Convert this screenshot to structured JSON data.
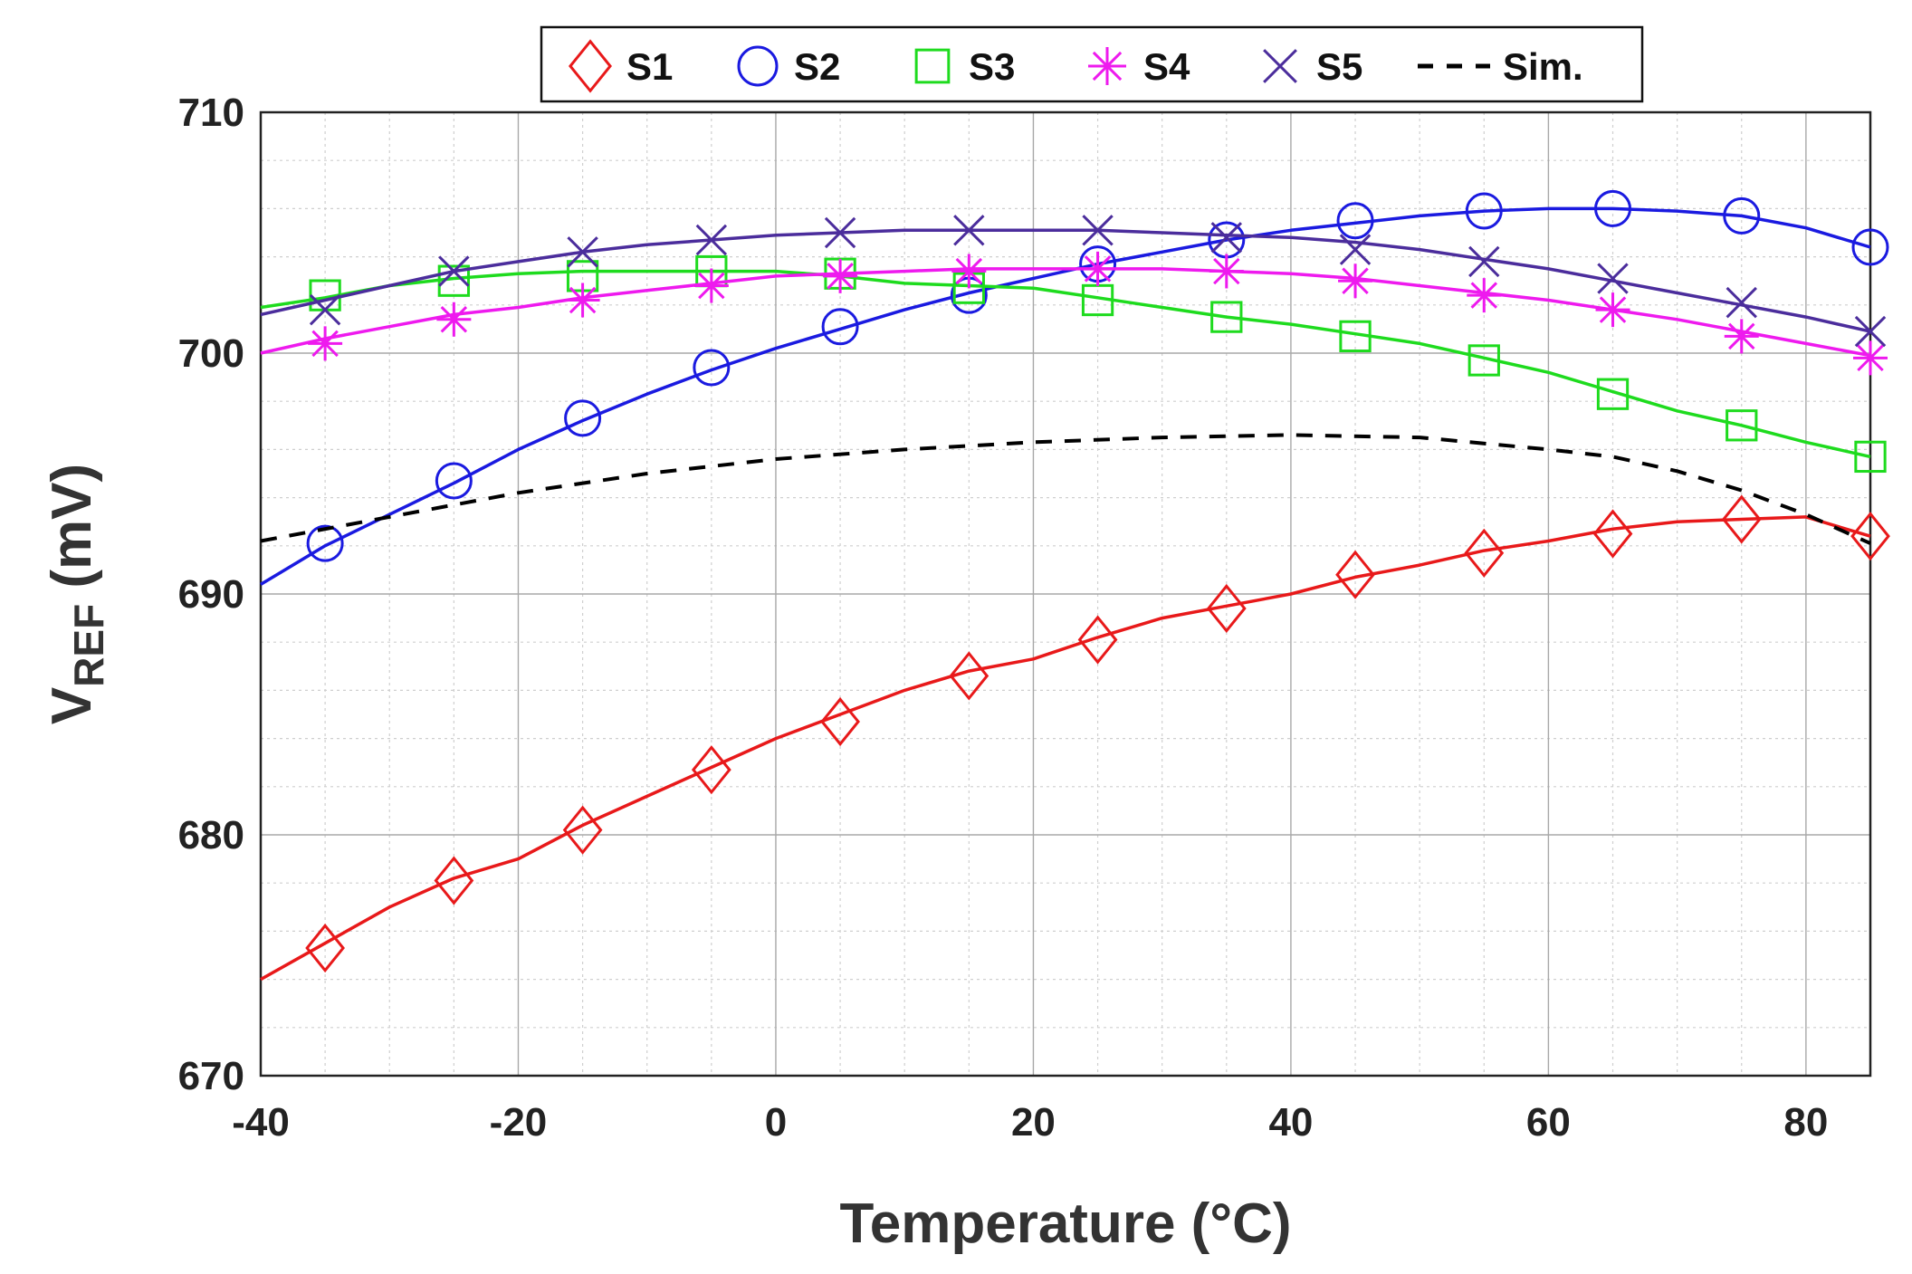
{
  "chart_data": {
    "type": "line",
    "xlabel": "Temperature (°C)",
    "ylabel_main": "V",
    "ylabel_sub": "REF",
    "ylabel_unit": " (mV)",
    "xlim": [
      -40,
      85
    ],
    "ylim": [
      670,
      710
    ],
    "xticks": [
      -40,
      -20,
      0,
      20,
      40,
      60,
      80
    ],
    "yticks": [
      670,
      680,
      690,
      700,
      710
    ],
    "grid": true,
    "legend_position": "top-center",
    "marker_x": [
      -35,
      -25,
      -15,
      -5,
      5,
      15,
      25,
      35,
      45,
      55,
      65,
      75,
      85
    ],
    "series": [
      {
        "name": "S1",
        "color": "#e8191a",
        "marker": "diamond",
        "x": [
          -40,
          -35,
          -30,
          -25,
          -20,
          -15,
          -10,
          -5,
          0,
          5,
          10,
          15,
          20,
          25,
          30,
          35,
          40,
          45,
          50,
          55,
          60,
          65,
          70,
          75,
          80,
          85
        ],
        "y": [
          674.0,
          675.5,
          677.0,
          678.2,
          679.0,
          680.4,
          681.6,
          682.8,
          684.0,
          685.0,
          686.0,
          686.8,
          687.3,
          688.2,
          689.0,
          689.5,
          690.0,
          690.7,
          691.2,
          691.8,
          692.2,
          692.7,
          693.0,
          693.1,
          693.2,
          692.4
        ],
        "markers": [
          675.3,
          678.1,
          680.2,
          682.7,
          684.7,
          686.6,
          688.1,
          689.4,
          690.8,
          691.7,
          692.5,
          693.1,
          692.4
        ]
      },
      {
        "name": "S2",
        "color": "#1a1ae0",
        "marker": "circle",
        "x": [
          -40,
          -35,
          -30,
          -25,
          -20,
          -15,
          -10,
          -5,
          0,
          5,
          10,
          15,
          20,
          25,
          30,
          35,
          40,
          45,
          50,
          55,
          60,
          65,
          70,
          75,
          80,
          85
        ],
        "y": [
          690.4,
          692.0,
          693.3,
          694.6,
          696.0,
          697.2,
          698.3,
          699.3,
          700.2,
          701.0,
          701.8,
          702.5,
          703.1,
          703.7,
          704.2,
          704.7,
          705.1,
          705.4,
          705.7,
          705.9,
          706.0,
          706.0,
          705.9,
          705.7,
          705.2,
          704.4
        ],
        "markers": [
          692.1,
          694.7,
          697.3,
          699.4,
          701.1,
          702.4,
          703.7,
          704.7,
          705.5,
          705.9,
          706.0,
          705.7,
          704.4
        ]
      },
      {
        "name": "S3",
        "color": "#1edb1e",
        "marker": "square",
        "x": [
          -40,
          -35,
          -30,
          -25,
          -20,
          -15,
          -10,
          -5,
          0,
          5,
          10,
          15,
          20,
          25,
          30,
          35,
          40,
          45,
          50,
          55,
          60,
          65,
          70,
          75,
          80,
          85
        ],
        "y": [
          701.9,
          702.3,
          702.8,
          703.1,
          703.3,
          703.4,
          703.4,
          703.4,
          703.4,
          703.2,
          702.9,
          702.8,
          702.7,
          702.3,
          701.9,
          701.5,
          701.2,
          700.8,
          700.4,
          699.8,
          699.2,
          698.4,
          697.6,
          697.0,
          696.3,
          695.7
        ],
        "markers": [
          702.4,
          703.0,
          703.2,
          703.4,
          703.3,
          702.7,
          702.2,
          701.5,
          700.7,
          699.7,
          698.3,
          697.0,
          695.7
        ]
      },
      {
        "name": "S4",
        "color": "#ee1aee",
        "marker": "asterisk",
        "x": [
          -40,
          -35,
          -30,
          -25,
          -20,
          -15,
          -10,
          -5,
          0,
          5,
          10,
          15,
          20,
          25,
          30,
          35,
          40,
          45,
          50,
          55,
          60,
          65,
          70,
          75,
          80,
          85
        ],
        "y": [
          700.0,
          700.6,
          701.1,
          701.6,
          701.9,
          702.3,
          702.6,
          702.9,
          703.2,
          703.3,
          703.4,
          703.5,
          703.5,
          703.5,
          703.5,
          703.4,
          703.3,
          703.1,
          702.8,
          702.5,
          702.2,
          701.8,
          701.4,
          700.9,
          700.4,
          699.9
        ],
        "markers": [
          700.4,
          701.4,
          702.2,
          702.8,
          703.2,
          703.4,
          703.5,
          703.4,
          703.0,
          702.4,
          701.8,
          700.7,
          699.8
        ]
      },
      {
        "name": "S5",
        "color": "#4b2d9c",
        "marker": "x",
        "x": [
          -40,
          -35,
          -30,
          -25,
          -20,
          -15,
          -10,
          -5,
          0,
          5,
          10,
          15,
          20,
          25,
          30,
          35,
          40,
          45,
          50,
          55,
          60,
          65,
          70,
          75,
          80,
          85
        ],
        "y": [
          701.6,
          702.2,
          702.8,
          703.4,
          703.8,
          704.2,
          704.5,
          704.7,
          704.9,
          705.0,
          705.1,
          705.1,
          705.1,
          705.1,
          705.0,
          704.9,
          704.8,
          704.6,
          704.3,
          703.9,
          703.5,
          703.0,
          702.5,
          702.0,
          701.5,
          700.9
        ],
        "markers": [
          701.8,
          703.4,
          704.2,
          704.7,
          705.0,
          705.1,
          705.1,
          704.8,
          704.3,
          703.8,
          703.1,
          702.1,
          700.9
        ]
      },
      {
        "name": "Sim.",
        "color": "#000000",
        "marker": "none",
        "dashed": true,
        "x": [
          -40,
          -30,
          -20,
          -10,
          0,
          10,
          20,
          30,
          40,
          50,
          60,
          65,
          70,
          75,
          80,
          85
        ],
        "y": [
          692.2,
          693.2,
          694.2,
          695.0,
          695.6,
          696.0,
          696.3,
          696.5,
          696.6,
          696.5,
          696.0,
          695.7,
          695.1,
          694.3,
          693.3,
          692.1
        ],
        "markers": []
      }
    ]
  }
}
